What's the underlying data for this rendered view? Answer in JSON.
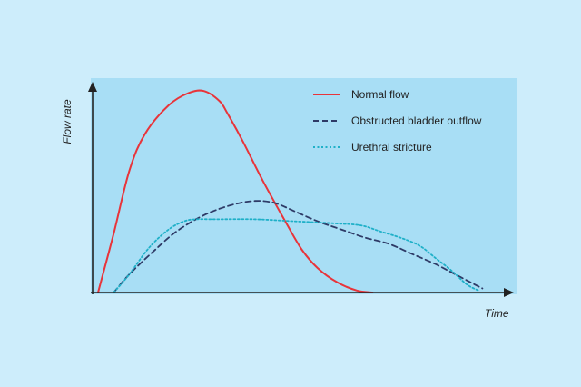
{
  "chart_data": {
    "type": "line",
    "title": "",
    "xlabel": "Time",
    "ylabel": "Flow rate",
    "xlim": [
      0,
      100
    ],
    "ylim": [
      0,
      100
    ],
    "grid": false,
    "legend_position": "top-right",
    "colors": {
      "page_background": "#cdedfb",
      "plot_background": "#a8def5",
      "axis": "#222222"
    },
    "series": [
      {
        "name": "Normal flow",
        "color": "#e8343a",
        "line_style": "solid",
        "x": [
          0,
          4,
          8,
          12,
          18,
          23,
          27,
          31,
          33,
          37,
          42,
          48,
          52,
          56,
          61,
          66,
          70
        ],
        "y": [
          0,
          29,
          60,
          78,
          92,
          98,
          99,
          94,
          88,
          74,
          55,
          34,
          21,
          12,
          5,
          1,
          0
        ]
      },
      {
        "name": "Obstructed bladder outflow",
        "color": "#2e3a66",
        "line_style": "dashed",
        "x": [
          4,
          8,
          14,
          20,
          27,
          34,
          40,
          45,
          50,
          56,
          62,
          68,
          74,
          80,
          86,
          91,
          95,
          98
        ],
        "y": [
          0,
          9,
          20,
          30,
          38,
          43,
          45,
          44,
          40,
          35,
          31,
          27,
          24,
          19,
          14,
          9,
          5,
          2
        ]
      },
      {
        "name": "Urethral stricture",
        "color": "#1fb0c8",
        "line_style": "dotted",
        "x": [
          4,
          8,
          13,
          18,
          22,
          25,
          30,
          40,
          50,
          60,
          67,
          72,
          77,
          82,
          86,
          90,
          94,
          97
        ],
        "y": [
          0,
          9,
          22,
          31,
          35,
          36,
          36,
          36,
          35,
          34,
          33,
          30,
          27,
          23,
          17,
          11,
          4,
          1
        ]
      }
    ]
  }
}
